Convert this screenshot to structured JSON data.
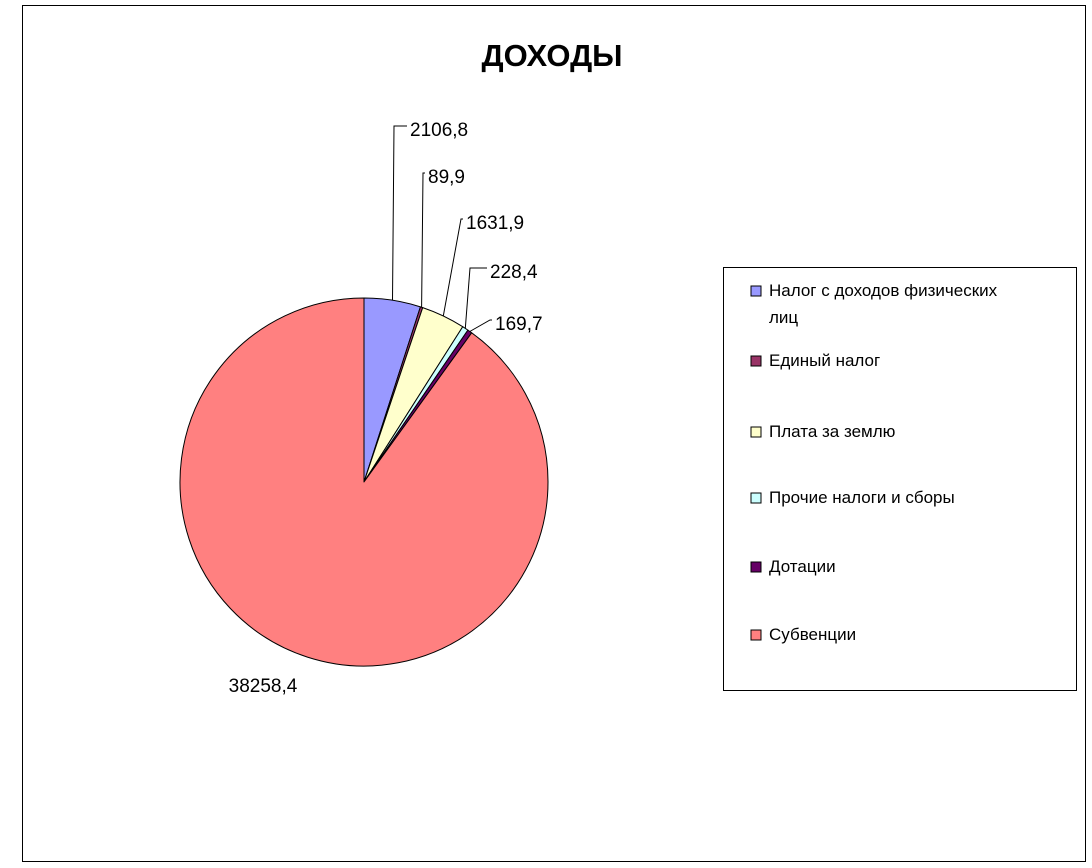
{
  "chart_data": {
    "type": "pie",
    "title": "ДОХОДЫ",
    "categories": [
      "Налог с доходов физических лиц",
      "Единый налог",
      "Плата за землю",
      "Прочие налоги и сборы",
      "Дотации",
      "Субвенции"
    ],
    "values": [
      2106.8,
      89.9,
      1631.9,
      228.4,
      169.7,
      38258.4
    ],
    "value_labels": [
      "2106,8",
      "89,9",
      "1631,9",
      "228,4",
      "169,7",
      "38258,4"
    ],
    "colors": [
      "#9999FF",
      "#993366",
      "#FFFFCC",
      "#CCFFFF",
      "#660066",
      "#FF8080"
    ],
    "legend_placement": "right",
    "start_angle_deg": 0,
    "direction": "clockwise"
  }
}
